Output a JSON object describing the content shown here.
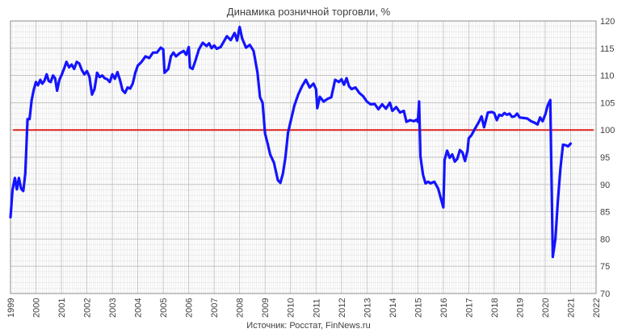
{
  "chart_data": {
    "type": "line",
    "title": "Динамика розничной торговли, %",
    "source": "Источник: Росстат, FinNews.ru",
    "xlim": [
      1999,
      2022
    ],
    "ylim": [
      70,
      120
    ],
    "x_ticks": [
      1999,
      2000,
      2001,
      2002,
      2003,
      2004,
      2005,
      2006,
      2007,
      2008,
      2009,
      2010,
      2011,
      2012,
      2013,
      2014,
      2015,
      2016,
      2017,
      2018,
      2019,
      2020,
      2021,
      2022
    ],
    "y_ticks": [
      70,
      75,
      80,
      85,
      90,
      95,
      100,
      105,
      110,
      115,
      120
    ],
    "grid": true,
    "reference_line": {
      "value": 100,
      "from": 1999.1,
      "to": 2021.9,
      "color": "#e0201c"
    },
    "series": [
      {
        "color": "#1414ff",
        "points": [
          [
            1999.0,
            84
          ],
          [
            1999.08,
            89
          ],
          [
            1999.17,
            91.2
          ],
          [
            1999.25,
            89.1
          ],
          [
            1999.33,
            91.2
          ],
          [
            1999.42,
            89.2
          ],
          [
            1999.5,
            88.8
          ],
          [
            1999.58,
            92
          ],
          [
            1999.67,
            102
          ],
          [
            1999.75,
            102
          ],
          [
            1999.83,
            105.5
          ],
          [
            1999.92,
            107.5
          ],
          [
            2000.0,
            108.8
          ],
          [
            2000.08,
            108.2
          ],
          [
            2000.17,
            109.2
          ],
          [
            2000.25,
            108.5
          ],
          [
            2000.33,
            109
          ],
          [
            2000.42,
            110.2
          ],
          [
            2000.5,
            109
          ],
          [
            2000.58,
            108.8
          ],
          [
            2000.67,
            110
          ],
          [
            2000.75,
            109.5
          ],
          [
            2000.83,
            107.2
          ],
          [
            2000.92,
            109.2
          ],
          [
            2001.0,
            110
          ],
          [
            2001.1,
            111.2
          ],
          [
            2001.2,
            112.5
          ],
          [
            2001.3,
            111.5
          ],
          [
            2001.4,
            112
          ],
          [
            2001.5,
            111.2
          ],
          [
            2001.6,
            112.5
          ],
          [
            2001.7,
            112.2
          ],
          [
            2001.8,
            111
          ],
          [
            2001.9,
            110.2
          ],
          [
            2002.0,
            110.8
          ],
          [
            2002.1,
            109.8
          ],
          [
            2002.2,
            106.5
          ],
          [
            2002.3,
            107.5
          ],
          [
            2002.4,
            110.5
          ],
          [
            2002.5,
            109.7
          ],
          [
            2002.6,
            110
          ],
          [
            2002.7,
            109.5
          ],
          [
            2002.8,
            109.3
          ],
          [
            2002.9,
            108.8
          ],
          [
            2003.0,
            110.2
          ],
          [
            2003.1,
            109.4
          ],
          [
            2003.2,
            110.6
          ],
          [
            2003.3,
            109.2
          ],
          [
            2003.4,
            107.3
          ],
          [
            2003.5,
            106.8
          ],
          [
            2003.6,
            107.8
          ],
          [
            2003.7,
            107.6
          ],
          [
            2003.8,
            108.5
          ],
          [
            2003.9,
            110.5
          ],
          [
            2004.0,
            111.8
          ],
          [
            2004.15,
            112.5
          ],
          [
            2004.3,
            113.5
          ],
          [
            2004.45,
            113.2
          ],
          [
            2004.6,
            114.2
          ],
          [
            2004.75,
            114.2
          ],
          [
            2004.9,
            115.1
          ],
          [
            2005.0,
            114.8
          ],
          [
            2005.05,
            110.5
          ],
          [
            2005.2,
            111.2
          ],
          [
            2005.3,
            113.5
          ],
          [
            2005.4,
            114.2
          ],
          [
            2005.5,
            113.5
          ],
          [
            2005.65,
            114.1
          ],
          [
            2005.8,
            114.5
          ],
          [
            2005.9,
            113.8
          ],
          [
            2006.0,
            115.2
          ],
          [
            2006.05,
            111.5
          ],
          [
            2006.15,
            111.2
          ],
          [
            2006.25,
            112.5
          ],
          [
            2006.4,
            114.8
          ],
          [
            2006.55,
            116
          ],
          [
            2006.7,
            115.4
          ],
          [
            2006.8,
            115.9
          ],
          [
            2006.9,
            115
          ],
          [
            2007.0,
            115.5
          ],
          [
            2007.1,
            114.9
          ],
          [
            2007.25,
            115.2
          ],
          [
            2007.4,
            116.4
          ],
          [
            2007.5,
            117.2
          ],
          [
            2007.65,
            116.5
          ],
          [
            2007.8,
            117.8
          ],
          [
            2007.9,
            116.4
          ],
          [
            2008.0,
            118.9
          ],
          [
            2008.1,
            116.8
          ],
          [
            2008.25,
            115.1
          ],
          [
            2008.4,
            115.6
          ],
          [
            2008.55,
            114.5
          ],
          [
            2008.7,
            110.5
          ],
          [
            2008.8,
            106
          ],
          [
            2008.9,
            105
          ],
          [
            2009.0,
            99.3
          ],
          [
            2009.1,
            97.5
          ],
          [
            2009.2,
            95.5
          ],
          [
            2009.35,
            94
          ],
          [
            2009.5,
            90.8
          ],
          [
            2009.6,
            90.3
          ],
          [
            2009.7,
            92
          ],
          [
            2009.8,
            95
          ],
          [
            2009.9,
            99.5
          ],
          [
            2010.0,
            101.5
          ],
          [
            2010.15,
            104.5
          ],
          [
            2010.3,
            106.5
          ],
          [
            2010.45,
            108
          ],
          [
            2010.6,
            109.2
          ],
          [
            2010.75,
            107.8
          ],
          [
            2010.9,
            108.5
          ],
          [
            2011.0,
            107.5
          ],
          [
            2011.05,
            104
          ],
          [
            2011.15,
            106.1
          ],
          [
            2011.3,
            105.2
          ],
          [
            2011.45,
            105.7
          ],
          [
            2011.6,
            106
          ],
          [
            2011.75,
            109.2
          ],
          [
            2011.9,
            108.8
          ],
          [
            2012.0,
            109.3
          ],
          [
            2012.1,
            108.3
          ],
          [
            2012.2,
            109.5
          ],
          [
            2012.3,
            108
          ],
          [
            2012.4,
            107.5
          ],
          [
            2012.55,
            107.8
          ],
          [
            2012.7,
            106.8
          ],
          [
            2012.85,
            106.2
          ],
          [
            2013.0,
            105.2
          ],
          [
            2013.15,
            104.7
          ],
          [
            2013.3,
            104.8
          ],
          [
            2013.45,
            103.8
          ],
          [
            2013.6,
            104.7
          ],
          [
            2013.75,
            103.9
          ],
          [
            2013.9,
            105
          ],
          [
            2014.0,
            103.5
          ],
          [
            2014.15,
            104.2
          ],
          [
            2014.3,
            103.2
          ],
          [
            2014.45,
            103.5
          ],
          [
            2014.55,
            101.5
          ],
          [
            2014.7,
            101.8
          ],
          [
            2014.85,
            101.6
          ],
          [
            2014.95,
            101.9
          ],
          [
            2015.0,
            101.5
          ],
          [
            2015.05,
            105.2
          ],
          [
            2015.1,
            95.2
          ],
          [
            2015.2,
            91.8
          ],
          [
            2015.3,
            90.2
          ],
          [
            2015.4,
            90.5
          ],
          [
            2015.5,
            90.2
          ],
          [
            2015.65,
            90.5
          ],
          [
            2015.8,
            89.2
          ],
          [
            2015.9,
            87.5
          ],
          [
            2016.0,
            85.8
          ],
          [
            2016.05,
            94.5
          ],
          [
            2016.15,
            96.2
          ],
          [
            2016.25,
            94.9
          ],
          [
            2016.35,
            95.5
          ],
          [
            2016.45,
            94.2
          ],
          [
            2016.55,
            94.7
          ],
          [
            2016.65,
            96.3
          ],
          [
            2016.75,
            95.9
          ],
          [
            2016.85,
            94.3
          ],
          [
            2016.95,
            96.2
          ],
          [
            2017.0,
            98.5
          ],
          [
            2017.1,
            99
          ],
          [
            2017.25,
            100.3
          ],
          [
            2017.4,
            101.5
          ],
          [
            2017.5,
            102.5
          ],
          [
            2017.6,
            100.5
          ],
          [
            2017.75,
            103.2
          ],
          [
            2017.9,
            103.3
          ],
          [
            2018.0,
            103.1
          ],
          [
            2018.1,
            101.8
          ],
          [
            2018.2,
            102.8
          ],
          [
            2018.3,
            102.6
          ],
          [
            2018.4,
            103.1
          ],
          [
            2018.5,
            102.8
          ],
          [
            2018.6,
            103
          ],
          [
            2018.7,
            102.4
          ],
          [
            2018.8,
            102.5
          ],
          [
            2018.9,
            103
          ],
          [
            2019.0,
            102.3
          ],
          [
            2019.15,
            102.2
          ],
          [
            2019.3,
            102.1
          ],
          [
            2019.45,
            101.6
          ],
          [
            2019.6,
            101.3
          ],
          [
            2019.7,
            101
          ],
          [
            2019.8,
            102.3
          ],
          [
            2019.9,
            101.6
          ],
          [
            2020.0,
            102.8
          ],
          [
            2020.1,
            104.5
          ],
          [
            2020.2,
            105.5
          ],
          [
            2020.3,
            76.7
          ],
          [
            2020.4,
            80
          ],
          [
            2020.5,
            87
          ],
          [
            2020.6,
            93
          ],
          [
            2020.7,
            97.3
          ],
          [
            2020.8,
            97.2
          ],
          [
            2020.9,
            97
          ],
          [
            2021.0,
            97.5
          ]
        ]
      }
    ]
  }
}
